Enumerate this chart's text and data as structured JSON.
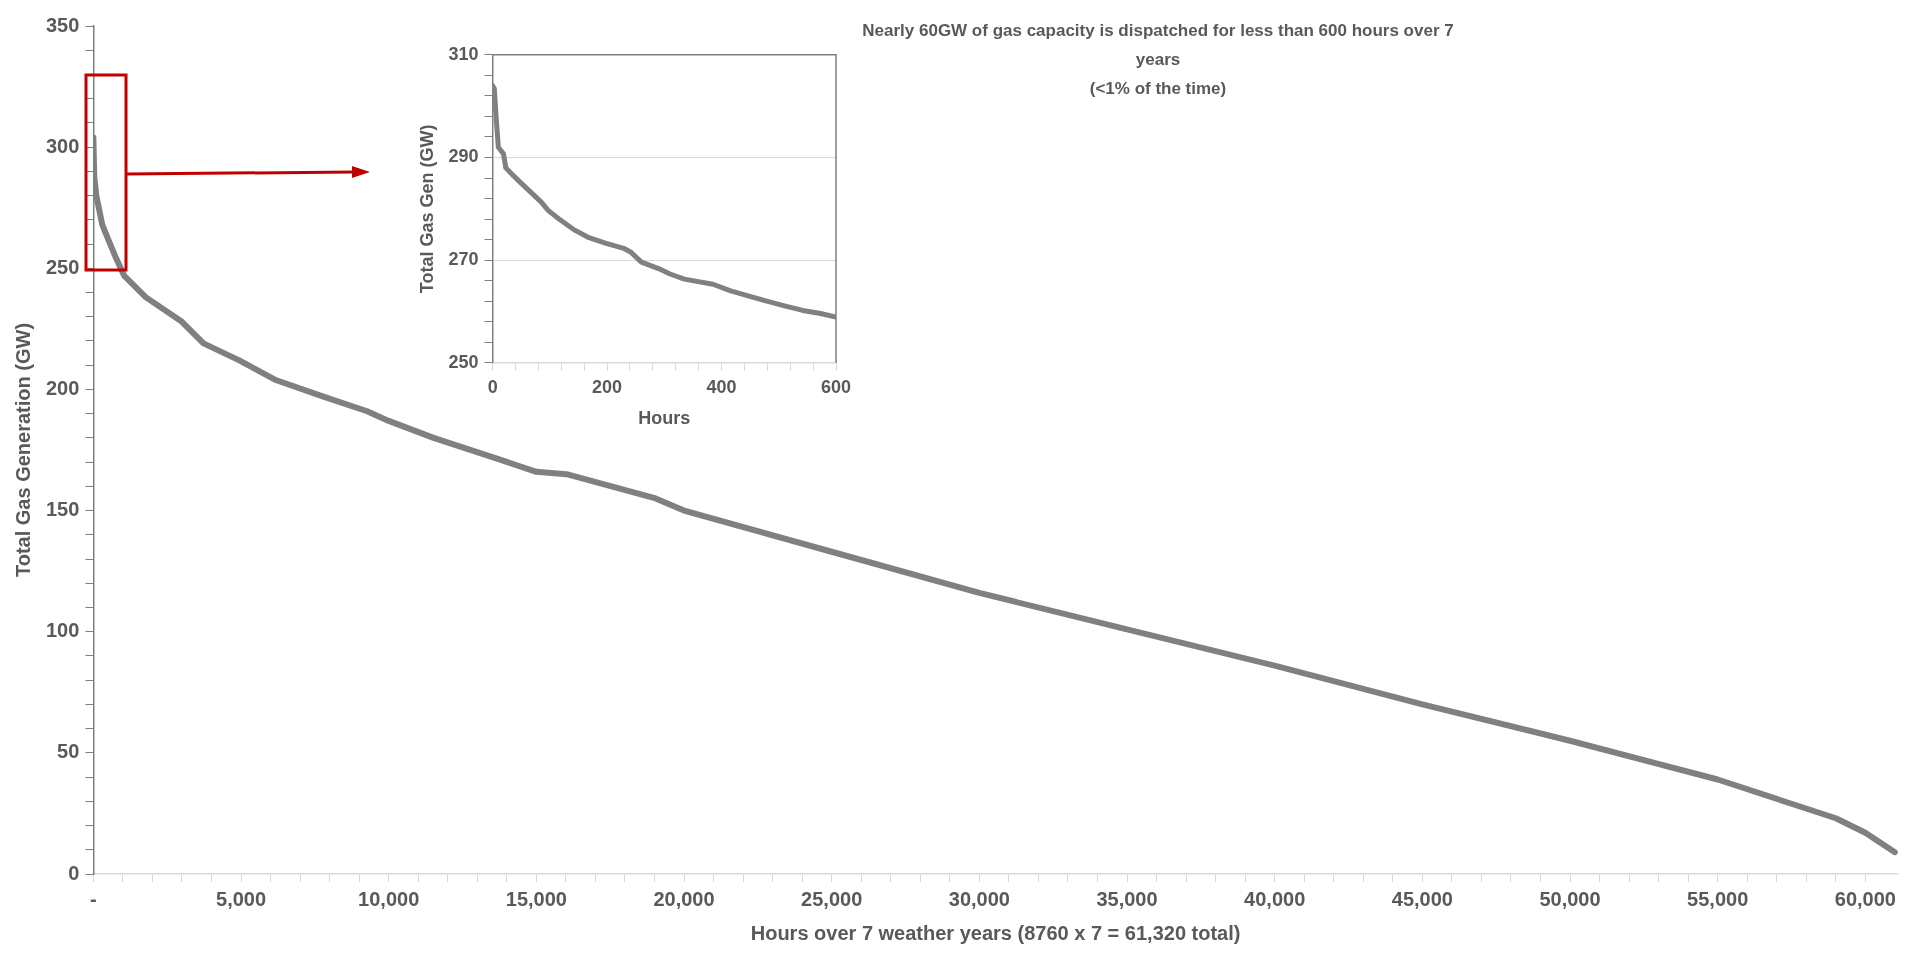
{
  "chart_data": [
    {
      "type": "line",
      "xlabel": "Hours over 7 weather years (8760 x 7 = 61,320 total)",
      "ylabel": "Total Gas Generation (GW)",
      "annotations": [
        "Nearly 60GW of gas capacity is dispatched for less than 600 hours over 7 years",
        "(<1% of the time)"
      ],
      "grid": false,
      "marker": "none",
      "line_style": "solid",
      "xlim": [
        0,
        61100
      ],
      "ylim": [
        0,
        350
      ],
      "xticks": [
        {
          "value": 0,
          "label": "-"
        },
        {
          "value": 1000,
          "label": null
        },
        {
          "value": 2000,
          "label": null
        },
        {
          "value": 3000,
          "label": null
        },
        {
          "value": 4000,
          "label": null
        },
        {
          "value": 5000,
          "label": "5,000"
        },
        {
          "value": 6000,
          "label": null
        },
        {
          "value": 7000,
          "label": null
        },
        {
          "value": 8000,
          "label": null
        },
        {
          "value": 9000,
          "label": null
        },
        {
          "value": 10000,
          "label": "10,000"
        },
        {
          "value": 11000,
          "label": null
        },
        {
          "value": 12000,
          "label": null
        },
        {
          "value": 13000,
          "label": null
        },
        {
          "value": 14000,
          "label": null
        },
        {
          "value": 15000,
          "label": "15,000"
        },
        {
          "value": 16000,
          "label": null
        },
        {
          "value": 17000,
          "label": null
        },
        {
          "value": 18000,
          "label": null
        },
        {
          "value": 19000,
          "label": null
        },
        {
          "value": 20000,
          "label": "20,000"
        },
        {
          "value": 21000,
          "label": null
        },
        {
          "value": 22000,
          "label": null
        },
        {
          "value": 23000,
          "label": null
        },
        {
          "value": 24000,
          "label": null
        },
        {
          "value": 25000,
          "label": "25,000"
        },
        {
          "value": 26000,
          "label": null
        },
        {
          "value": 27000,
          "label": null
        },
        {
          "value": 28000,
          "label": null
        },
        {
          "value": 29000,
          "label": null
        },
        {
          "value": 30000,
          "label": "30,000"
        },
        {
          "value": 31000,
          "label": null
        },
        {
          "value": 32000,
          "label": null
        },
        {
          "value": 33000,
          "label": null
        },
        {
          "value": 34000,
          "label": null
        },
        {
          "value": 35000,
          "label": "35,000"
        },
        {
          "value": 36000,
          "label": null
        },
        {
          "value": 37000,
          "label": null
        },
        {
          "value": 38000,
          "label": null
        },
        {
          "value": 39000,
          "label": null
        },
        {
          "value": 40000,
          "label": "40,000"
        },
        {
          "value": 41000,
          "label": null
        },
        {
          "value": 42000,
          "label": null
        },
        {
          "value": 43000,
          "label": null
        },
        {
          "value": 44000,
          "label": null
        },
        {
          "value": 45000,
          "label": "45,000"
        },
        {
          "value": 46000,
          "label": null
        },
        {
          "value": 47000,
          "label": null
        },
        {
          "value": 48000,
          "label": null
        },
        {
          "value": 49000,
          "label": null
        },
        {
          "value": 50000,
          "label": "50,000"
        },
        {
          "value": 51000,
          "label": null
        },
        {
          "value": 52000,
          "label": null
        },
        {
          "value": 53000,
          "label": null
        },
        {
          "value": 54000,
          "label": null
        },
        {
          "value": 55000,
          "label": "55,000"
        },
        {
          "value": 56000,
          "label": null
        },
        {
          "value": 57000,
          "label": null
        },
        {
          "value": 58000,
          "label": null
        },
        {
          "value": 59000,
          "label": null
        },
        {
          "value": 60000,
          "label": "60,000"
        }
      ],
      "yticks": [
        0,
        {
          "value": 10,
          "label": null
        },
        {
          "value": 20,
          "label": null
        },
        {
          "value": 30,
          "label": null
        },
        {
          "value": 40,
          "label": null
        },
        50,
        {
          "value": 60,
          "label": null
        },
        {
          "value": 70,
          "label": null
        },
        {
          "value": 80,
          "label": null
        },
        {
          "value": 90,
          "label": null
        },
        100,
        {
          "value": 110,
          "label": null
        },
        {
          "value": 120,
          "label": null
        },
        {
          "value": 130,
          "label": null
        },
        {
          "value": 140,
          "label": null
        },
        150,
        {
          "value": 160,
          "label": null
        },
        {
          "value": 170,
          "label": null
        },
        {
          "value": 180,
          "label": null
        },
        {
          "value": 190,
          "label": null
        },
        200,
        {
          "value": 210,
          "label": null
        },
        {
          "value": 220,
          "label": null
        },
        {
          "value": 230,
          "label": null
        },
        {
          "value": 240,
          "label": null
        },
        250,
        {
          "value": 260,
          "label": null
        },
        {
          "value": 270,
          "label": null
        },
        {
          "value": 280,
          "label": null
        },
        {
          "value": 290,
          "label": null
        },
        300,
        {
          "value": 310,
          "label": null
        },
        {
          "value": 320,
          "label": null
        },
        {
          "value": 330,
          "label": null
        },
        {
          "value": 340,
          "label": null
        },
        350
      ],
      "series": [
        {
          "color": "#808080",
          "x": [
            0,
            30,
            100,
            300,
            600,
            740,
            1040,
            1780,
            2990,
            3730,
            4940,
            6150,
            7790,
            9270,
            10000,
            11520,
            13770,
            15000,
            16020,
            19040,
            20000,
            25000,
            30000,
            35000,
            40000,
            45000,
            50000,
            55000,
            57500,
            59000,
            60000,
            61000
          ],
          "values": [
            304,
            288,
            280,
            268,
            259,
            255,
            247,
            238,
            228,
            219,
            212,
            204,
            197,
            191,
            187,
            180,
            171,
            166,
            165,
            155,
            150,
            133,
            116,
            101,
            86,
            70,
            55,
            39,
            29,
            23,
            17,
            9
          ]
        }
      ]
    },
    {
      "type": "line",
      "xlabel": "Hours",
      "ylabel": "Total Gas Gen (GW)",
      "grid": "y",
      "marker": "none",
      "line_style": "solid",
      "xlim": [
        0,
        600
      ],
      "ylim": [
        250,
        310
      ],
      "xticks": [
        0,
        {
          "value": 40,
          "label": null
        },
        {
          "value": 80,
          "label": null
        },
        {
          "value": 120,
          "label": null
        },
        {
          "value": 160,
          "label": null
        },
        200,
        {
          "value": 240,
          "label": null
        },
        {
          "value": 280,
          "label": null
        },
        {
          "value": 320,
          "label": null
        },
        {
          "value": 360,
          "label": null
        },
        400,
        {
          "value": 440,
          "label": null
        },
        {
          "value": 480,
          "label": null
        },
        {
          "value": 520,
          "label": null
        },
        {
          "value": 560,
          "label": null
        },
        600
      ],
      "yticks": [
        250,
        {
          "value": 254,
          "label": null
        },
        {
          "value": 258,
          "label": null
        },
        {
          "value": 262,
          "label": null
        },
        {
          "value": 266,
          "label": null
        },
        270,
        {
          "value": 274,
          "label": null
        },
        {
          "value": 278,
          "label": null
        },
        {
          "value": 282,
          "label": null
        },
        {
          "value": 286,
          "label": null
        },
        290,
        {
          "value": 294,
          "label": null
        },
        {
          "value": 298,
          "label": null
        },
        {
          "value": 302,
          "label": null
        },
        {
          "value": 306,
          "label": null
        },
        310
      ],
      "series": [
        {
          "color": "#808080",
          "x": [
            0,
            3,
            6,
            10,
            19,
            23,
            34,
            47,
            66,
            85,
            97,
            116,
            141,
            166,
            197,
            229,
            241,
            260,
            291,
            310,
            335,
            385,
            416,
            448,
            479,
            510,
            542,
            573,
            600
          ],
          "values": [
            304,
            303.4,
            298,
            292,
            290.7,
            288,
            286.7,
            285.3,
            283.3,
            281.3,
            279.7,
            278,
            276,
            274.5,
            273.3,
            272.3,
            271.6,
            269.6,
            268.3,
            267.3,
            266.3,
            265.3,
            264,
            263,
            262,
            261.1,
            260.2,
            259.6,
            258.9
          ]
        }
      ]
    }
  ]
}
